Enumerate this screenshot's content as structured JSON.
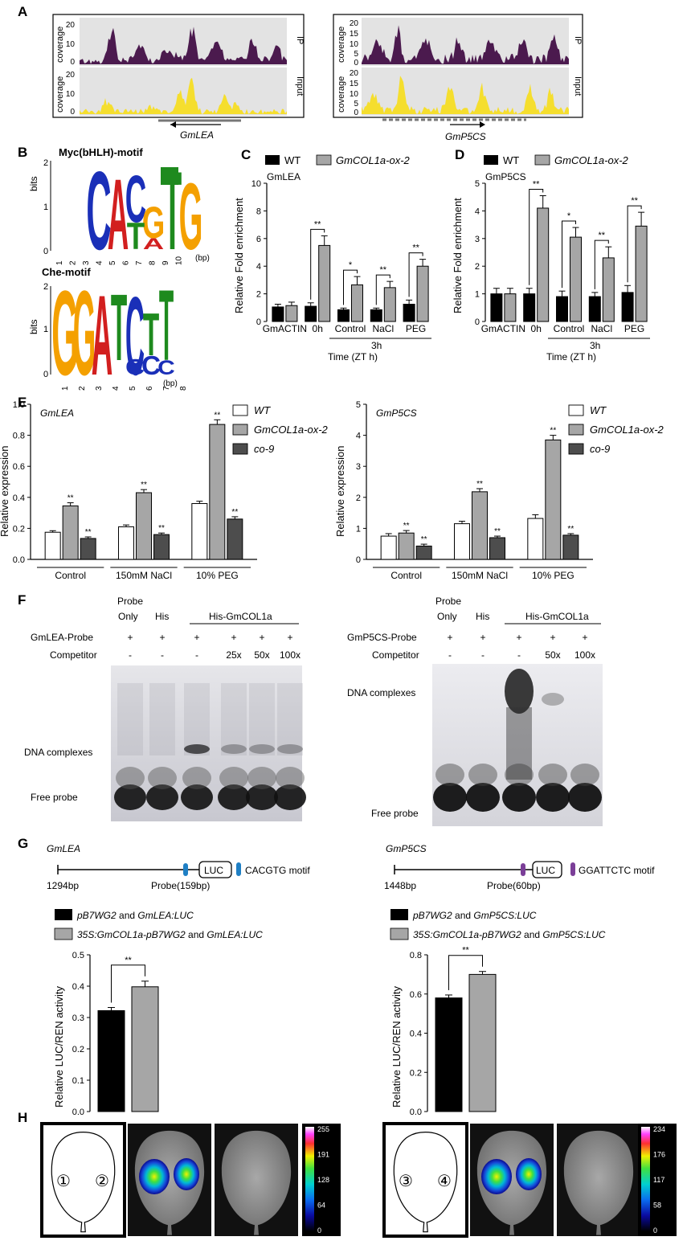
{
  "panels": {
    "A": {
      "letter": "A",
      "left": {
        "gene": "GmLEA",
        "ylabel": "coverage",
        "ticks": [
          "20",
          "10",
          "0"
        ],
        "ip": "IP",
        "input": "Input"
      },
      "right": {
        "gene": "GmP5CS",
        "ylabel": "coverage",
        "ticks": [
          "20",
          "15",
          "10",
          "5",
          "0"
        ],
        "ip": "IP",
        "input": "Input"
      },
      "colors": {
        "ip": "#4b1a4e",
        "input": "#f5de2e",
        "track_bg": "#e3e3e3"
      }
    },
    "B": {
      "letter": "B",
      "myc": {
        "title": "Myc(bHLH)-motif",
        "ylabel": "bits",
        "yticks": [
          "2",
          "1",
          "0"
        ],
        "xticks": [
          "1",
          "2",
          "3",
          "4",
          "5",
          "6",
          "7",
          "8",
          "9",
          "10"
        ],
        "unit": "(bp)",
        "letters": [
          "C",
          "A",
          "C",
          "G",
          "T",
          "G"
        ],
        "lower_letters": [
          "T",
          "A"
        ]
      },
      "che": {
        "title": "Che-motif",
        "ylabel": "bits",
        "yticks": [
          "2",
          "1",
          "0"
        ],
        "xticks": [
          "1",
          "2",
          "3",
          "4",
          "5",
          "6",
          "7",
          "8"
        ],
        "unit": "(bp)",
        "letters": [
          "G",
          "G",
          "A",
          "T",
          "C",
          "T",
          "T"
        ],
        "lower_letters": [
          "C",
          "C",
          "C"
        ]
      }
    },
    "C": {
      "letter": "C",
      "legend": [
        "WT",
        "GmCOL1a-ox-2"
      ],
      "gene": "GmLEA",
      "ylabel": "Relative Fold enrichment",
      "xlabel": "Time (ZT h)",
      "group_label": "3h",
      "categories": [
        "GmACTIN",
        "0h",
        "Control",
        "NaCl",
        "PEG"
      ]
    },
    "D": {
      "letter": "D",
      "legend": [
        "WT",
        "GmCOL1a-ox-2"
      ],
      "gene": "GmP5CS",
      "ylabel": "Relative Fold enrichment",
      "xlabel": "Time (ZT h)",
      "group_label": "3h",
      "categories": [
        "GmACTIN",
        "0h",
        "Control",
        "NaCl",
        "PEG"
      ]
    },
    "E": {
      "letter": "E",
      "legend": [
        "WT",
        "GmCOL1a-ox-2",
        "co-9"
      ],
      "ylabel": "Relative expression",
      "categories": [
        "Control",
        "150mM NaCl",
        "10% PEG"
      ],
      "left_gene": "GmLEA",
      "right_gene": "GmP5CS"
    },
    "F": {
      "letter": "F",
      "left": {
        "col_heads": [
          "Probe",
          "Only",
          "His",
          "His-GmCOL1a"
        ],
        "probe_label": "GmLEA-Probe",
        "probe_marks": [
          "+",
          "+",
          "+",
          "+",
          "+",
          "+"
        ],
        "competitor_label": "Competitor",
        "competitor_marks": [
          "-",
          "-",
          "-",
          "25x",
          "50x",
          "100x"
        ],
        "complex_label": "DNA complexes",
        "free_label": "Free probe"
      },
      "right": {
        "col_heads": [
          "Probe",
          "Only",
          "His",
          "His-GmCOL1a"
        ],
        "probe_label": "GmP5CS-Probe",
        "probe_marks": [
          "+",
          "+",
          "+",
          "+",
          "+"
        ],
        "competitor_label": "Competitor",
        "competitor_marks": [
          "-",
          "-",
          "-",
          "50x",
          "100x"
        ],
        "complex_label": "DNA complexes",
        "free_label": "Free probe"
      }
    },
    "G": {
      "letter": "G",
      "left": {
        "gene": "GmLEA",
        "length": "1294bp",
        "probe": "Probe(159bp)",
        "luc": "LUC",
        "motif": "CACGTG motif",
        "motif_color": "#1f7fc4",
        "legend1_a": "pB7WG2",
        "legend1_b": " and ",
        "legend1_c": "GmLEA:LUC",
        "legend2_a": "35S:GmCOL1a-pB7WG2",
        "legend2_b": " and ",
        "legend2_c": "GmLEA:LUC",
        "ylabel": "Relative LUC/REN activity",
        "sig": "**"
      },
      "right": {
        "gene": "GmP5CS",
        "length": "1448bp",
        "probe": "Probe(60bp)",
        "luc": "LUC",
        "motif": "GGATTCTC motif",
        "motif_color": "#7b3f98",
        "legend1_a": "pB7WG2",
        "legend1_b": " and ",
        "legend1_c": "GmP5CS:LUC",
        "legend2_a": "35S:GmCOL1a-pB7WG2",
        "legend2_b": " and ",
        "legend2_c": "GmP5CS:LUC",
        "ylabel": "Relative LUC/REN activity",
        "sig": "**"
      }
    },
    "H": {
      "letter": "H",
      "left": {
        "marks": [
          "①",
          "②"
        ],
        "scale": [
          "255",
          "191",
          "128",
          "64",
          "0"
        ]
      },
      "right": {
        "marks": [
          "③",
          "④"
        ],
        "scale": [
          "234",
          "176",
          "117",
          "58",
          "0"
        ]
      }
    }
  },
  "chart_data": [
    {
      "id": "C",
      "type": "bar",
      "title": "GmLEA",
      "categories": [
        "GmACTIN",
        "0h",
        "Control",
        "NaCl",
        "PEG"
      ],
      "series": [
        {
          "name": "WT",
          "color": "#000000",
          "values": [
            1.05,
            1.1,
            0.85,
            0.85,
            1.25
          ],
          "errors": [
            0.2,
            0.25,
            0.12,
            0.12,
            0.3
          ]
        },
        {
          "name": "GmCOL1a-ox-2",
          "color": "#a6a6a6",
          "values": [
            1.15,
            5.5,
            2.65,
            2.45,
            4.0
          ],
          "errors": [
            0.25,
            0.7,
            0.6,
            0.45,
            0.5
          ]
        }
      ],
      "significance": [
        "",
        "**",
        "*",
        "**",
        "**"
      ],
      "ylabel": "Relative Fold enrichment",
      "xlabel": "Time (ZT h)",
      "ylim": [
        0,
        10
      ],
      "yticks": [
        0,
        2,
        4,
        6,
        8,
        10
      ]
    },
    {
      "id": "D",
      "type": "bar",
      "title": "GmP5CS",
      "categories": [
        "GmACTIN",
        "0h",
        "Control",
        "NaCl",
        "PEG"
      ],
      "series": [
        {
          "name": "WT",
          "color": "#000000",
          "values": [
            1.0,
            1.0,
            0.9,
            0.9,
            1.05
          ],
          "errors": [
            0.2,
            0.2,
            0.2,
            0.15,
            0.25
          ]
        },
        {
          "name": "GmCOL1a-ox-2",
          "color": "#a6a6a6",
          "values": [
            1.0,
            4.1,
            3.05,
            2.3,
            3.45
          ],
          "errors": [
            0.2,
            0.45,
            0.35,
            0.4,
            0.5
          ]
        }
      ],
      "significance": [
        "",
        "**",
        "*",
        "**",
        "**"
      ],
      "ylabel": "Relative Fold enrichment",
      "xlabel": "Time (ZT h)",
      "ylim": [
        0,
        5
      ],
      "yticks": [
        0,
        1,
        2,
        3,
        4,
        5
      ]
    },
    {
      "id": "E-left",
      "type": "bar",
      "title": "GmLEA",
      "categories": [
        "Control",
        "150mM NaCl",
        "10% PEG"
      ],
      "series": [
        {
          "name": "WT",
          "color": "#ffffff",
          "values": [
            0.175,
            0.21,
            0.36
          ],
          "errors": [
            0.01,
            0.012,
            0.015
          ]
        },
        {
          "name": "GmCOL1a-ox-2",
          "color": "#a6a6a6",
          "values": [
            0.345,
            0.43,
            0.87
          ],
          "errors": [
            0.02,
            0.02,
            0.03
          ]
        },
        {
          "name": "co-9",
          "color": "#4d4d4d",
          "values": [
            0.135,
            0.16,
            0.26
          ],
          "errors": [
            0.01,
            0.01,
            0.015
          ]
        }
      ],
      "significance": [
        [
          "",
          "**",
          "**"
        ],
        [
          "",
          "**",
          "**"
        ],
        [
          "",
          "**",
          "**"
        ]
      ],
      "ylabel": "Relative expression",
      "ylim": [
        0,
        1.0
      ],
      "yticks": [
        0.0,
        0.2,
        0.4,
        0.6,
        0.8,
        1.0
      ]
    },
    {
      "id": "E-right",
      "type": "bar",
      "title": "GmP5CS",
      "categories": [
        "Control",
        "150mM NaCl",
        "10% PEG"
      ],
      "series": [
        {
          "name": "WT",
          "color": "#ffffff",
          "values": [
            0.75,
            1.15,
            1.32
          ],
          "errors": [
            0.08,
            0.08,
            0.12
          ]
        },
        {
          "name": "GmCOL1a-ox-2",
          "color": "#a6a6a6",
          "values": [
            0.85,
            2.18,
            3.85
          ],
          "errors": [
            0.08,
            0.1,
            0.15
          ]
        },
        {
          "name": "co-9",
          "color": "#4d4d4d",
          "values": [
            0.43,
            0.7,
            0.78
          ],
          "errors": [
            0.06,
            0.05,
            0.05
          ]
        }
      ],
      "significance": [
        [
          "",
          "**",
          "**"
        ],
        [
          "",
          "**",
          "**"
        ],
        [
          "",
          "**",
          "**"
        ]
      ],
      "ylabel": "Relative expression",
      "ylim": [
        0,
        5
      ],
      "yticks": [
        0,
        1,
        2,
        3,
        4,
        5
      ]
    },
    {
      "id": "G-left",
      "type": "bar",
      "categories": [
        "pB7WG2 and GmLEA:LUC",
        "35S:GmCOL1a-pB7WG2 and GmLEA:LUC"
      ],
      "values": [
        0.322,
        0.398
      ],
      "errors": [
        0.01,
        0.018
      ],
      "colors": [
        "#000000",
        "#a6a6a6"
      ],
      "ylabel": "Relative LUC/REN activity",
      "ylim": [
        0,
        0.5
      ],
      "yticks": [
        0.0,
        0.1,
        0.2,
        0.3,
        0.4,
        0.5
      ]
    },
    {
      "id": "G-right",
      "type": "bar",
      "categories": [
        "pB7WG2 and GmP5CS:LUC",
        "35S:GmCOL1a-pB7WG2 and GmP5CS:LUC"
      ],
      "values": [
        0.58,
        0.7
      ],
      "errors": [
        0.015,
        0.015
      ],
      "colors": [
        "#000000",
        "#a6a6a6"
      ],
      "ylabel": "Relative LUC/REN activity",
      "ylim": [
        0,
        0.8
      ],
      "yticks": [
        0.0,
        0.2,
        0.4,
        0.6,
        0.8
      ]
    }
  ]
}
